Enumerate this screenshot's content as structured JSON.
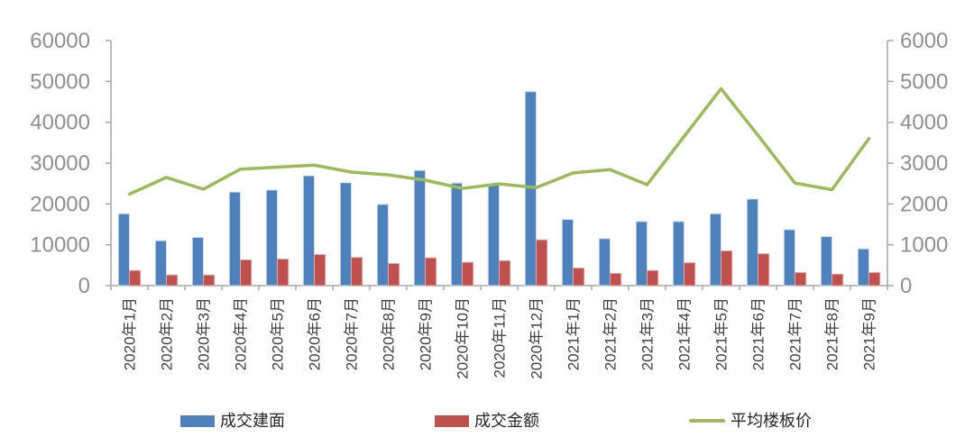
{
  "chart_data": {
    "type": "combo",
    "title": "",
    "subtitle": "",
    "grid": "off",
    "background": "#ffffff",
    "legend_position": "bottom",
    "categories": [
      "2020年1月",
      "2020年2月",
      "2020年3月",
      "2020年4月",
      "2020年5月",
      "2020年6月",
      "2020年7月",
      "2020年8月",
      "2020年9月",
      "2020年10月",
      "2020年11月",
      "2020年12月",
      "2021年1月",
      "2021年2月",
      "2021年3月",
      "2021年4月",
      "2021年5月",
      "2021年6月",
      "2021年7月",
      "2021年8月",
      "2021年9月"
    ],
    "series": [
      {
        "name": "成交建面",
        "type": "bar",
        "axis": "left",
        "color": "#4F81BD",
        "edge_color": "#cfdcec",
        "values": [
          17600,
          11000,
          11800,
          22900,
          23400,
          26900,
          25200,
          19900,
          28200,
          25100,
          24600,
          47500,
          16200,
          11500,
          15700,
          15700,
          17600,
          21200,
          13700,
          12000,
          9000
        ]
      },
      {
        "name": "成交金额",
        "type": "bar",
        "axis": "left",
        "color": "#C0504D",
        "edge_color": "#dcaaa8",
        "values": [
          3700,
          2600,
          2600,
          6300,
          6500,
          7600,
          6900,
          5400,
          6800,
          5700,
          6100,
          11200,
          4300,
          3000,
          3700,
          5600,
          8500,
          7800,
          3200,
          2800,
          3200
        ]
      },
      {
        "name": "平均楼板价",
        "type": "line",
        "axis": "right",
        "color": "#9BBB59",
        "values": [
          2240,
          2650,
          2360,
          2850,
          2900,
          2950,
          2780,
          2710,
          2580,
          2380,
          2490,
          2400,
          2760,
          2840,
          2470,
          3650,
          4820,
          3680,
          2510,
          2350,
          3600
        ]
      }
    ],
    "left_axis": {
      "min": 0,
      "max": 60000,
      "step": 10000,
      "tick_labels": [
        "0",
        "10000",
        "20000",
        "30000",
        "40000",
        "50000",
        "60000"
      ]
    },
    "right_axis": {
      "min": 0,
      "max": 6000,
      "step": 1000,
      "tick_labels": [
        "0",
        "1000",
        "2000",
        "3000",
        "4000",
        "5000",
        "6000"
      ]
    },
    "colors": {
      "axis_line": "#a6a6a6",
      "axis_tick_label": "#8f8f8f",
      "x_tick_label": "#3f3f3f",
      "legend_text": "#262626"
    }
  }
}
